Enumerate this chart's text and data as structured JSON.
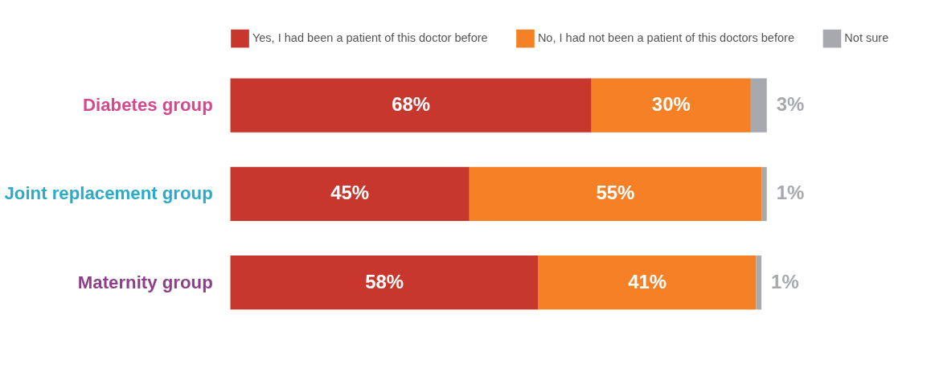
{
  "chart_data": {
    "type": "bar",
    "orientation": "horizontal",
    "stacked": true,
    "legend": "top",
    "categories": [
      "Diabetes group",
      "Joint replacement group",
      "Maternity group"
    ],
    "series": [
      {
        "name": "Yes, I had been a patient of this doctor before",
        "color": "#c8372d",
        "values": [
          68,
          45,
          58
        ],
        "value_labels": [
          "68%",
          "45%",
          "58%"
        ]
      },
      {
        "name": "No, I had not been a patient of this doctors before",
        "color": "#f58025",
        "values": [
          30,
          55,
          41
        ],
        "value_labels": [
          "30%",
          "55%",
          "41%"
        ]
      },
      {
        "name": "Not sure",
        "color": "#a7a9ac",
        "values": [
          3,
          1,
          1
        ],
        "value_labels": [
          "3%",
          "1%",
          "1%"
        ]
      }
    ]
  }
}
